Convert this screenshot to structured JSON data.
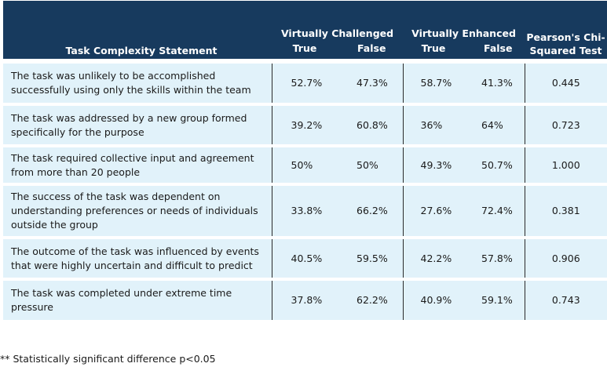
{
  "table": {
    "header": {
      "statement": "Task Complexity Statement",
      "group_challenged": "Virtually Challenged",
      "group_enhanced": "Virtually Enhanced",
      "chi": "Pearson's Chi-Squared Test",
      "true_label": "True",
      "false_label": "False"
    },
    "rows": [
      {
        "statement": "The task was unlikely to be accomplished successfully using only the skills within the team",
        "vc_true": "52.7%",
        "vc_false": "47.3%",
        "ve_true": "58.7%",
        "ve_false": "41.3%",
        "chi": "0.445"
      },
      {
        "statement": "The task was addressed by a new group formed specifically for the purpose",
        "vc_true": "39.2%",
        "vc_false": "60.8%",
        "ve_true": "36%",
        "ve_false": "64%",
        "chi": "0.723"
      },
      {
        "statement": "The task required collective input and agreement from more than 20 people",
        "vc_true": "50%",
        "vc_false": "50%",
        "ve_true": "49.3%",
        "ve_false": "50.7%",
        "chi": "1.000"
      },
      {
        "statement": "The success of the task was dependent on understanding preferences or needs of individuals outside the group",
        "vc_true": "33.8%",
        "vc_false": "66.2%",
        "ve_true": "27.6%",
        "ve_false": "72.4%",
        "chi": "0.381"
      },
      {
        "statement": "The outcome of the task was influenced by events that were highly uncertain and difficult to predict",
        "vc_true": "40.5%",
        "vc_false": "59.5%",
        "ve_true": "42.2%",
        "ve_false": "57.8%",
        "chi": "0.906"
      },
      {
        "statement": "The task was completed under extreme time pressure",
        "vc_true": "37.8%",
        "vc_false": "62.2%",
        "ve_true": "40.9%",
        "ve_false": "59.1%",
        "chi": "0.743"
      }
    ]
  },
  "footnote": "** Statistically significant difference p<0.05",
  "colors": {
    "header_bg": "#173a5e",
    "row_bg": "#e1f2fa"
  }
}
